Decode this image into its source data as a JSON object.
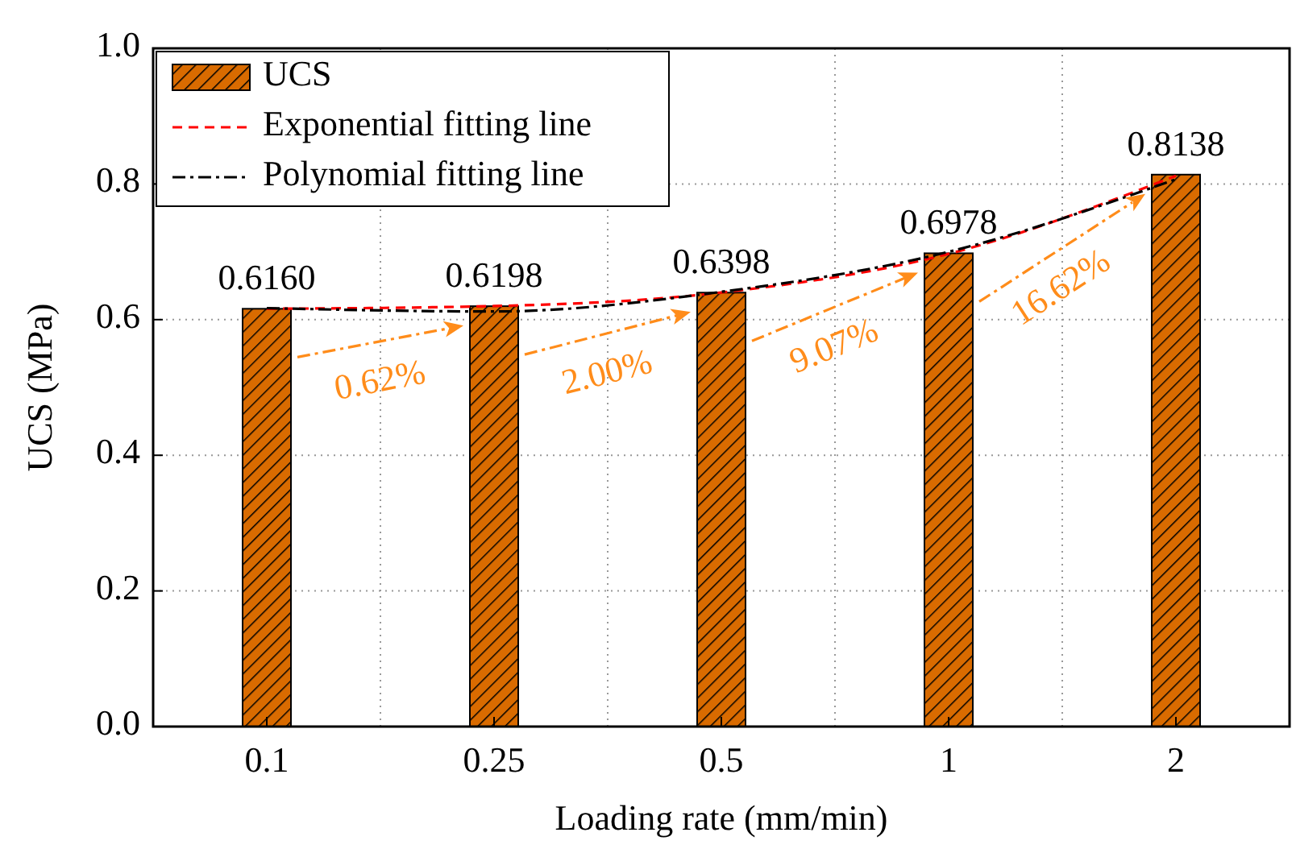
{
  "chart_data": {
    "type": "bar",
    "xlabel": "Loading rate (mm/min)",
    "ylabel": "UCS (MPa)",
    "categories": [
      "0.1",
      "0.25",
      "0.5",
      "1",
      "2"
    ],
    "series": [
      {
        "name": "UCS",
        "color": "#d96b00",
        "values": [
          0.616,
          0.6198,
          0.6398,
          0.6978,
          0.8138
        ],
        "value_labels": [
          "0.6160",
          "0.6198",
          "0.6398",
          "0.6978",
          "0.8138"
        ]
      },
      {
        "name": "Exponential fitting line",
        "type": "line",
        "color": "#ff0000",
        "line_style": "dashed",
        "values": [
          0.616,
          0.62,
          0.64,
          0.697,
          0.812
        ]
      },
      {
        "name": "Polynomial fitting line",
        "type": "line",
        "color": "#000000",
        "line_style": "dashdot",
        "values": [
          0.617,
          0.612,
          0.641,
          0.7,
          0.807
        ]
      }
    ],
    "annotations": [
      "0.62%",
      "2.00%",
      "9.07%",
      "16.62%"
    ],
    "ylim": [
      0,
      1
    ],
    "yticks": [
      {
        "value": 0,
        "label": "0.0"
      },
      {
        "value": 0.2,
        "label": "0.2"
      },
      {
        "value": 0.4,
        "label": "0.4"
      },
      {
        "value": 0.6,
        "label": "0.6"
      },
      {
        "value": 0.8,
        "label": "0.8"
      },
      {
        "value": 1,
        "label": "1.0"
      }
    ],
    "grid": true,
    "legend": "top left"
  }
}
